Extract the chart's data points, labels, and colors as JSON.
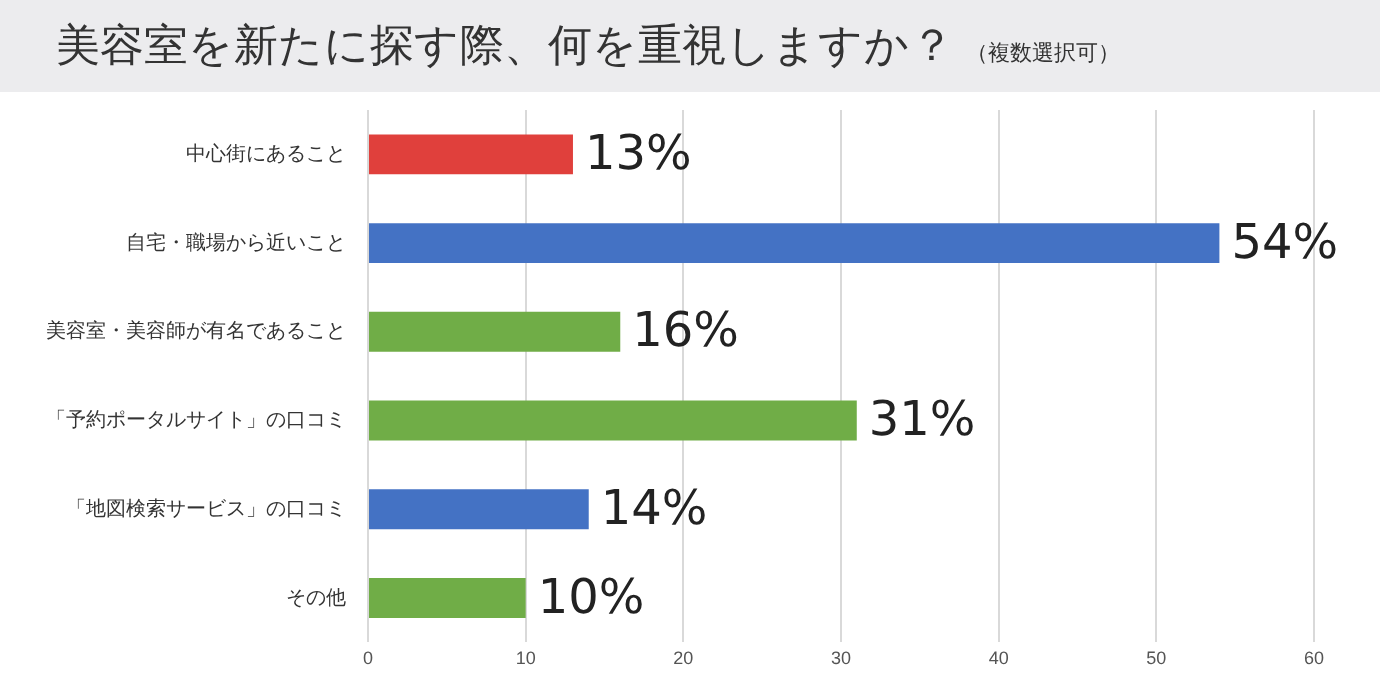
{
  "chart_data": {
    "type": "bar",
    "orientation": "horizontal",
    "title": "美容室を新たに探す際、何を重視しますか？",
    "subtitle": "（複数選択可）",
    "categories": [
      "中心街にあること",
      "自宅・職場から近いこと",
      "美容室・美容師が有名であること",
      "「予約ポータルサイト」の口コミ",
      "「地図検索サービス」の口コミ",
      "その他"
    ],
    "values": [
      13,
      54,
      16,
      31,
      14,
      10
    ],
    "colors": [
      "#e0403c",
      "#4472c4",
      "#70ad47",
      "#70ad47",
      "#4472c4",
      "#70ad47"
    ],
    "value_labels": [
      "13%",
      "54%",
      "16%",
      "31%",
      "14%",
      "10%"
    ],
    "xlim": [
      0,
      60
    ],
    "xticks": [
      0,
      10,
      20,
      30,
      40,
      50,
      60
    ],
    "grid": "x",
    "legend": false
  }
}
